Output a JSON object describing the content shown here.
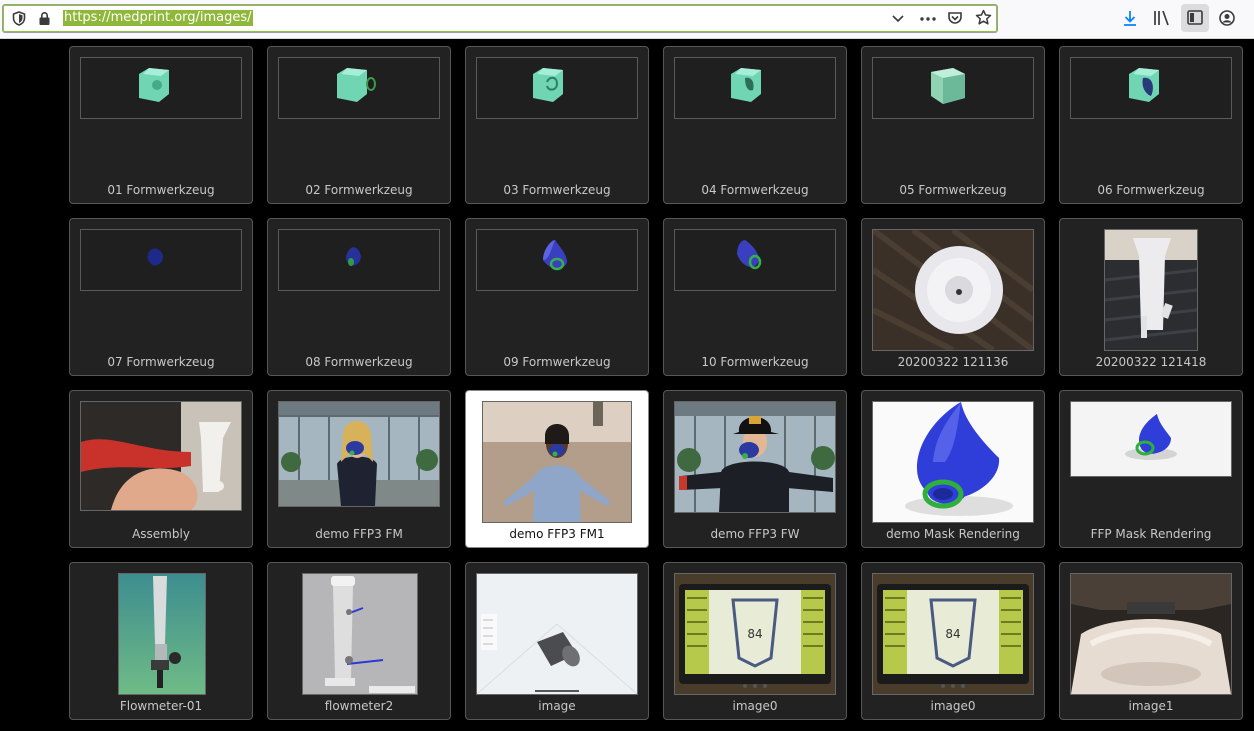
{
  "browser": {
    "url": "https://medprint.org/images/"
  },
  "gallery": {
    "items": [
      {
        "label": "01 Formwerkzeug"
      },
      {
        "label": "02 Formwerkzeug"
      },
      {
        "label": "03 Formwerkzeug"
      },
      {
        "label": "04 Formwerkzeug"
      },
      {
        "label": "05 Formwerkzeug"
      },
      {
        "label": "06 Formwerkzeug"
      },
      {
        "label": "07 Formwerkzeug"
      },
      {
        "label": "08 Formwerkzeug"
      },
      {
        "label": "09 Formwerkzeug"
      },
      {
        "label": "10 Formwerkzeug"
      },
      {
        "label": "20200322 121136"
      },
      {
        "label": "20200322 121418"
      },
      {
        "label": "Assembly"
      },
      {
        "label": "demo FFP3 FM"
      },
      {
        "label": "demo FFP3 FM1"
      },
      {
        "label": "demo FFP3 FW"
      },
      {
        "label": "demo Mask Rendering"
      },
      {
        "label": "FFP Mask Rendering"
      },
      {
        "label": "Flowmeter-01"
      },
      {
        "label": "flowmeter2"
      },
      {
        "label": "image"
      },
      {
        "label": "image0"
      },
      {
        "label": "image0"
      },
      {
        "label": "image1"
      }
    ],
    "thumb_screen_value": "84"
  }
}
